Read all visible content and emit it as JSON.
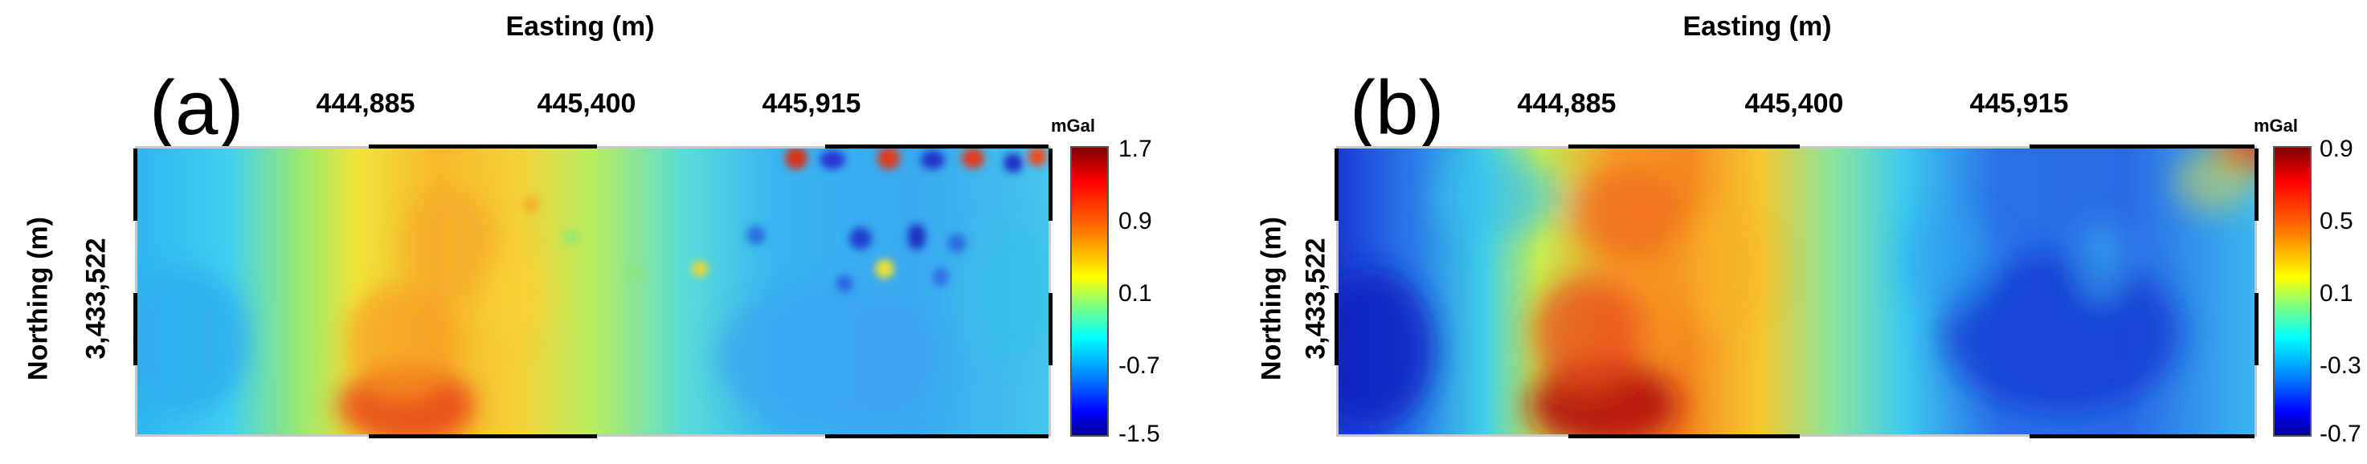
{
  "chart_data": [
    {
      "type": "heatmap",
      "panel_label": "(a)",
      "xlabel": "Easting (m)",
      "ylabel": "Northing (m)",
      "x_ticks": [
        "444,885",
        "445,400",
        "445,915"
      ],
      "y_ticks": [
        "3,433,522"
      ],
      "colorbar": {
        "unit": "mGal",
        "ticks": [
          "1.7",
          "0.9",
          "0.1",
          "-0.7",
          "-1.5"
        ],
        "range": [
          -1.5,
          1.7
        ],
        "colormap": "jet"
      },
      "grid": false
    },
    {
      "type": "heatmap",
      "panel_label": "(b)",
      "xlabel": "Easting (m)",
      "ylabel": "Northing (m)",
      "x_ticks": [
        "444,885",
        "445,400",
        "445,915"
      ],
      "y_ticks": [
        "3,433,522"
      ],
      "colorbar": {
        "unit": "mGal",
        "ticks": [
          "0.9",
          "0.5",
          "0.1",
          "-0.3",
          "-0.7"
        ],
        "range": [
          -0.7,
          0.9
        ],
        "colormap": "jet"
      },
      "grid": false
    }
  ]
}
